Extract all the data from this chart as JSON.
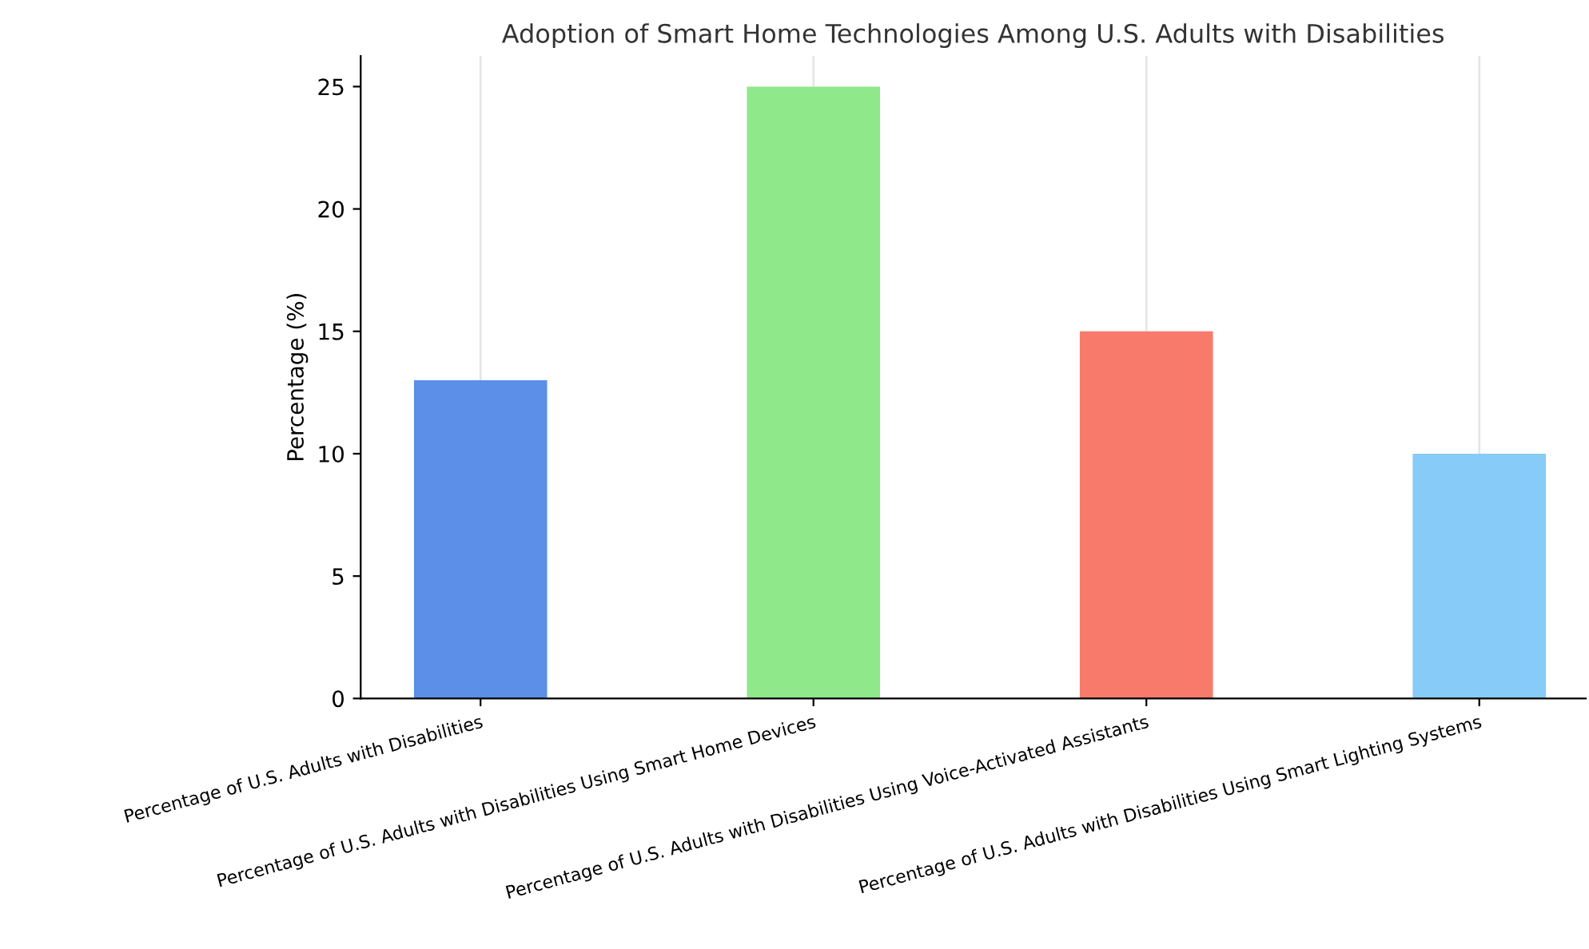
{
  "chart_data": {
    "type": "bar",
    "title": "Adoption of Smart Home Technologies Among U.S. Adults with Disabilities",
    "ylabel": "Percentage (%)",
    "categories": [
      "Percentage of U.S. Adults with Disabilities",
      "Percentage of U.S. Adults with Disabilities Using Smart Home Devices",
      "Percentage of U.S. Adults with Disabilities Using Voice-Activated Assistants",
      "Percentage of U.S. Adults with Disabilities Using Smart Lighting Systems"
    ],
    "values": [
      13,
      25,
      15,
      10
    ],
    "colors": [
      "#5b8fe8",
      "#8fe88a",
      "#f87a6a",
      "#87cbf8"
    ],
    "ylim": [
      0,
      26.25
    ],
    "yticks": [
      0,
      5,
      10,
      15,
      20,
      25
    ],
    "grid": "x"
  }
}
